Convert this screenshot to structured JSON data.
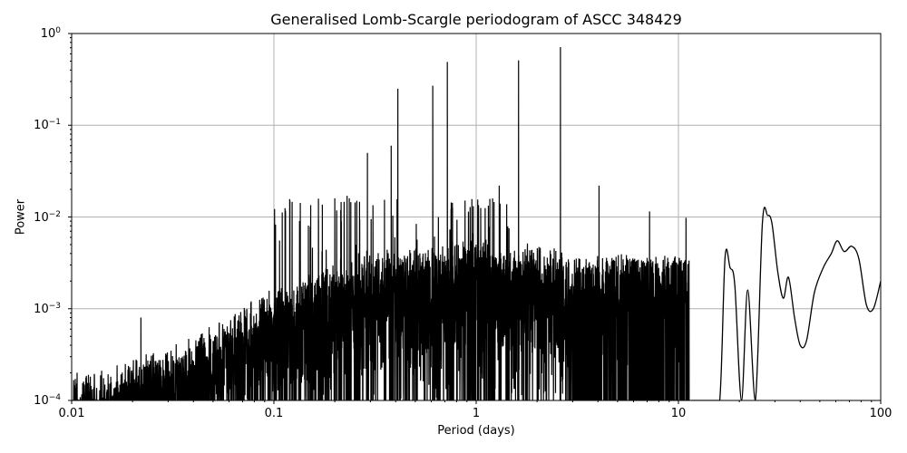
{
  "chart_data": {
    "type": "line",
    "title": "Generalised Lomb-Scargle periodogram of ASCC 348429",
    "xlabel": "Period (days)",
    "ylabel": "Power",
    "xscale": "log",
    "yscale": "log",
    "xlim": [
      0.01,
      100
    ],
    "ylim": [
      0.0001,
      1
    ],
    "grid": true,
    "line_color": "#000000",
    "grid_color": "#b0b0b0",
    "x_ticks": [
      {
        "value": 0.01,
        "label": "0.01"
      },
      {
        "value": 0.1,
        "label": "0.1"
      },
      {
        "value": 1,
        "label": "1"
      },
      {
        "value": 10,
        "label": "10"
      },
      {
        "value": 100,
        "label": "100"
      }
    ],
    "y_ticks": [
      {
        "value": 1,
        "base": "10",
        "exp": "0"
      },
      {
        "value": 0.1,
        "base": "10",
        "exp": "−1"
      },
      {
        "value": 0.01,
        "base": "10",
        "exp": "−2"
      },
      {
        "value": 0.001,
        "base": "10",
        "exp": "−3"
      },
      {
        "value": 0.0001,
        "base": "10",
        "exp": "−4"
      }
    ],
    "noise_envelope": {
      "period": [
        0.01,
        0.015,
        0.02,
        0.03,
        0.05,
        0.07,
        0.1,
        0.15,
        0.2,
        0.3,
        0.5,
        0.7,
        1.0,
        1.5,
        2.0,
        3.0
      ],
      "upper_power": [
        0.00015,
        0.00016,
        0.00022,
        0.00028,
        0.0005,
        0.0008,
        0.0013,
        0.0018,
        0.0025,
        0.003,
        0.0035,
        0.004,
        0.0045,
        0.004,
        0.004,
        0.003
      ]
    },
    "peaks": [
      {
        "period": 2.61,
        "power": 0.71
      },
      {
        "period": 1.62,
        "power": 0.51
      },
      {
        "period": 0.72,
        "power": 0.49
      },
      {
        "period": 0.61,
        "power": 0.27
      },
      {
        "period": 0.41,
        "power": 0.25
      },
      {
        "period": 0.38,
        "power": 0.06
      },
      {
        "period": 0.29,
        "power": 0.05
      },
      {
        "period": 1.3,
        "power": 0.022
      },
      {
        "period": 4.05,
        "power": 0.022
      },
      {
        "period": 0.23,
        "power": 0.017
      },
      {
        "period": 0.2,
        "power": 0.016
      },
      {
        "period": 0.12,
        "power": 0.015
      },
      {
        "period": 0.022,
        "power": 0.0008
      },
      {
        "period": 7.2,
        "power": 0.0115
      },
      {
        "period": 10.9,
        "power": 0.0098
      }
    ],
    "smooth_tail": {
      "period": [
        11.5,
        12.5,
        13.5,
        14.5,
        16.0,
        17.0,
        18.0,
        19.0,
        20.5,
        22.0,
        24.0,
        26.0,
        27.6,
        29.0,
        31.0,
        33.0,
        35.0,
        37.5,
        40.0,
        43.0,
        47.0,
        52.0,
        57.0,
        61.0,
        66.0,
        72.0,
        78.0,
        85.0,
        92.0,
        100.0
      ],
      "power": [
        0.0001,
        0.0001,
        0.0001,
        0.0001,
        0.0001,
        0.0036,
        0.0028,
        0.0018,
        0.0001,
        0.0016,
        0.0001,
        0.0085,
        0.0104,
        0.0085,
        0.0025,
        0.0013,
        0.0022,
        0.0008,
        0.0004,
        0.00045,
        0.0015,
        0.0028,
        0.004,
        0.0055,
        0.0042,
        0.0048,
        0.0035,
        0.0011,
        0.001,
        0.002
      ]
    }
  }
}
